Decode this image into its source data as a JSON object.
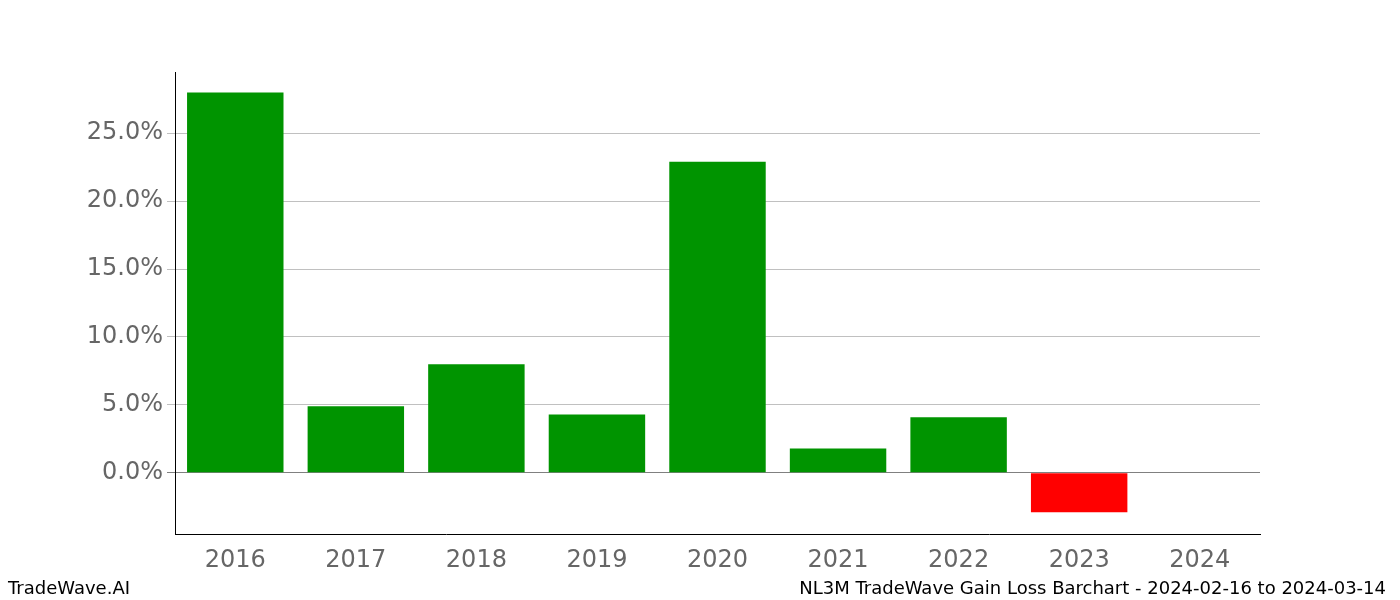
{
  "chart_data": {
    "type": "bar",
    "title": "NL3M TradeWave Gain Loss Barchart - 2024-02-16 to 2024-03-14",
    "annotations": [
      "TradeWave.AI"
    ],
    "categories": [
      "2016",
      "2017",
      "2018",
      "2019",
      "2020",
      "2021",
      "2022",
      "2023",
      "2024"
    ],
    "values": [
      28.0,
      4.9,
      8.0,
      4.3,
      22.9,
      1.8,
      4.1,
      -2.9,
      null
    ],
    "colors": [
      "#009400",
      "#009400",
      "#009400",
      "#009400",
      "#009400",
      "#009400",
      "#009400",
      "#ff0000",
      "#009400"
    ],
    "ylim": [
      -4.5,
      29.5
    ],
    "yticks": [
      {
        "value": 0,
        "label": "0.0%"
      },
      {
        "value": 5,
        "label": "5.0%"
      },
      {
        "value": 10,
        "label": "10.0%"
      },
      {
        "value": 15,
        "label": "15.0%"
      },
      {
        "value": 20,
        "label": "20.0%"
      },
      {
        "value": 25,
        "label": "25.0%"
      }
    ],
    "grid": true
  }
}
